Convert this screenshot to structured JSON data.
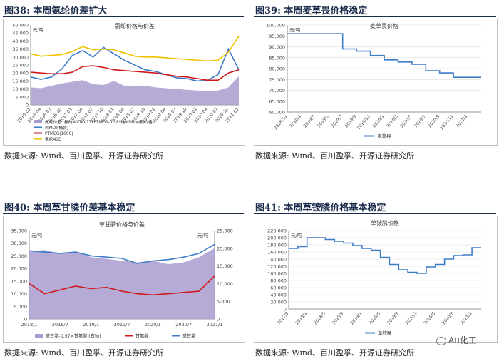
{
  "figures": [
    {
      "title": "图38:  本周氨纶价差扩大",
      "source": "数据来源:  Wind、百川盈孚、开源证券研究所"
    },
    {
      "title": "图39:  本周麦草畏价格稳定",
      "source": "数据来源:  Wind、百川盈孚、开源证券研究所"
    },
    {
      "title": "图40:  本周草甘膦价差基本稳定",
      "source": "数据来源:  Wind、百川盈孚、开源证券研究所"
    },
    {
      "title": "图41:  本周草铵膦价格基本稳定",
      "source": "数据来源:  Wind、百川盈孚、开源证券研究所"
    }
  ],
  "watermark": "Au化工",
  "colors": {
    "navy": "#1b2b4b",
    "purple": "#a99bd0",
    "blue": "#3d7cc9",
    "red": "#d1191c",
    "gold": "#f2c200",
    "grid": "#d9d9d9"
  },
  "chart_data": [
    {
      "type": "area",
      "title": "氨纶价格与价差",
      "ylabel": "元/吨",
      "ylim": [
        0,
        50000
      ],
      "yticks": [
        0,
        5000,
        10000,
        15000,
        20000,
        25000,
        30000,
        35000,
        40000,
        45000,
        50000
      ],
      "ytick_labels": [
        "0",
        "5,000",
        "10,000",
        "15,000",
        "20,000",
        "25,000",
        "30,000",
        "35,000",
        "40,000",
        "45,000",
        "50,000"
      ],
      "x": [
        "2016-01",
        "2016-04",
        "2016-07",
        "2016-10",
        "2017-01",
        "2017-04",
        "2017-07",
        "2017-10",
        "2018-01",
        "2018-04",
        "2018-07",
        "2018-10",
        "2019-01",
        "2019-04",
        "2019-07",
        "2019-10",
        "2020-01",
        "2020-04",
        "2020-07",
        "2020-10",
        "2021-01"
      ],
      "x_tick_labels": [
        "2016-01",
        "2016-04",
        "2016-07",
        "2016-10",
        "2017-01",
        "2017-04",
        "2017-07",
        "2017-10",
        "2018-01",
        "2018-04",
        "2018-07",
        "2018-10",
        "2019-01",
        "2019-04",
        "2019-07",
        "2019-10",
        "2020-01",
        "2020-04",
        "2020-07",
        "2020-10",
        "2021-01"
      ],
      "legend": [
        "氨纶价差: 氨纶40D-0.77*PTMEG-0.18*纯MDI (自勤价格)",
        "纯MDI(桶装)",
        "PTMEG(1000)",
        "氨纶40D"
      ],
      "series": [
        {
          "name": "氨纶价差: 氨纶40D-0.77*PTMEG-0.18*纯MDI (自勤价格)",
          "kind": "area",
          "color": "#a99bd0",
          "values": [
            11000,
            10500,
            12000,
            13500,
            14500,
            15500,
            13000,
            12500,
            15000,
            12000,
            11500,
            12000,
            11000,
            10500,
            10000,
            9500,
            9000,
            8500,
            9000,
            11000,
            18000
          ]
        },
        {
          "name": "纯MDI(桶装)",
          "kind": "line",
          "color": "#3d7cc9",
          "values": [
            17500,
            16000,
            17500,
            22500,
            31000,
            34000,
            30000,
            36000,
            32000,
            28000,
            25000,
            22000,
            21000,
            19000,
            17000,
            16500,
            15000,
            15500,
            19000,
            35000,
            22000
          ]
        },
        {
          "name": "PTMEG(1000)",
          "kind": "line",
          "color": "#d1191c",
          "values": [
            20500,
            20000,
            19500,
            19500,
            20500,
            24000,
            24500,
            23500,
            22000,
            21500,
            21000,
            20500,
            20000,
            19000,
            18000,
            17500,
            16500,
            15500,
            15500,
            20000,
            22000
          ]
        },
        {
          "name": "氨纶40D",
          "kind": "line",
          "color": "#f2c200",
          "values": [
            32000,
            30500,
            31000,
            31500,
            33500,
            36500,
            34500,
            35000,
            34500,
            32500,
            30500,
            30000,
            30000,
            29500,
            29000,
            28500,
            28000,
            27500,
            28000,
            33000,
            43000
          ]
        }
      ]
    },
    {
      "type": "line",
      "title": "麦草畏价格",
      "ylabel": "元/吨",
      "ylim": [
        60000,
        100000
      ],
      "yticks": [
        60000,
        65000,
        70000,
        75000,
        80000,
        85000,
        90000,
        95000,
        100000
      ],
      "ytick_labels": [
        "60,000",
        "65,000",
        "70,000",
        "75,000",
        "80,000",
        "85,000",
        "90,000",
        "95,000",
        "100,000"
      ],
      "x": [
        "2018/11",
        "2019/1",
        "2019/3",
        "2019/5",
        "2019/7",
        "2019/9",
        "2019/11",
        "2020/1",
        "2020/3",
        "2020/5",
        "2020/7",
        "2020/9",
        "2020/11",
        "2021/1",
        "2021/2"
      ],
      "x_tick_labels": [
        "2018/11",
        "2019/1",
        "2019/3",
        "2019/5",
        "2019/7",
        "2019/9",
        "2019/11",
        "2020/1",
        "2020/3",
        "2020/5",
        "2020/7",
        "2020/9",
        "2020/11",
        "2021/1"
      ],
      "legend": [
        "麦草畏"
      ],
      "series": [
        {
          "name": "麦草畏",
          "color": "#3d7cc9",
          "values": [
            96000,
            96000,
            96000,
            96000,
            89000,
            88000,
            86000,
            84000,
            83000,
            82000,
            79000,
            78000,
            76000,
            76000,
            76000
          ]
        }
      ]
    },
    {
      "type": "area",
      "title": "草甘膦价格与价差",
      "ylabel": "元/吨",
      "ylim": [
        0,
        35000
      ],
      "y2lim": [
        0,
        25000
      ],
      "yticks": [
        0,
        5000,
        10000,
        15000,
        20000,
        25000,
        30000,
        35000
      ],
      "ytick_labels": [
        "0",
        "5,000",
        "10,000",
        "15,000",
        "20,000",
        "25,000",
        "30,000",
        "35,000"
      ],
      "y2ticks": [
        0,
        5000,
        10000,
        15000,
        20000,
        25000
      ],
      "y2tick_labels": [
        "0",
        "5,000",
        "10,000",
        "15,000",
        "20,000",
        "25,000"
      ],
      "x": [
        "2018/1",
        "2018/4",
        "2018/7",
        "2018/10",
        "2019/1",
        "2019/4",
        "2019/7",
        "2019/10",
        "2020/1",
        "2020/4",
        "2020/7",
        "2020/10",
        "2021/1"
      ],
      "x_tick_labels": [
        "2018/1",
        "2018/7",
        "2019/1",
        "2019/7",
        "2020/1",
        "2020/7",
        "2021/1"
      ],
      "legend": [
        "草甘膦-0.57×甘氨酸 (右轴)",
        "甘氨酸",
        "草甘膦"
      ],
      "series": [
        {
          "name": "草甘膦-0.57×甘氨酸 (右轴)",
          "kind": "area",
          "axis": "right",
          "color": "#a99bd0",
          "values": [
            19000,
            19500,
            18500,
            19000,
            17500,
            17000,
            16500,
            16000,
            16500,
            15500,
            16000,
            17500,
            20000
          ]
        },
        {
          "name": "甘氨酸",
          "kind": "line",
          "color": "#d1191c",
          "values": [
            14000,
            10000,
            11500,
            13000,
            12000,
            12500,
            11000,
            10000,
            9500,
            10000,
            10500,
            11000,
            17000
          ]
        },
        {
          "name": "草甘膦",
          "kind": "line",
          "color": "#3d7cc9",
          "values": [
            27000,
            26500,
            26000,
            26500,
            25000,
            24500,
            24000,
            22000,
            23000,
            23500,
            24500,
            26000,
            29500
          ]
        }
      ]
    },
    {
      "type": "line",
      "title": "草铵膦价格",
      "ylabel": "元/吨",
      "ylim": [
        0,
        220000
      ],
      "yticks": [
        0,
        20000,
        40000,
        60000,
        80000,
        100000,
        120000,
        140000,
        160000,
        180000,
        200000,
        220000
      ],
      "ytick_labels": [
        "0",
        "20,000",
        "40,000",
        "60,000",
        "80,000",
        "100,000",
        "120,000",
        "140,000",
        "160,000",
        "180,000",
        "200,000",
        "220,000"
      ],
      "x": [
        "2017/9",
        "2017/11",
        "2018/1",
        "2018/3",
        "2018/5",
        "2018/7",
        "2018/9",
        "2018/11",
        "2019/1",
        "2019/3",
        "2019/5",
        "2019/7",
        "2019/9",
        "2019/11",
        "2020/1",
        "2020/3",
        "2020/5",
        "2020/7",
        "2020/9",
        "2020/11",
        "2021/1",
        "2021/2"
      ],
      "x_tick_labels": [
        "2017/9",
        "2018/1",
        "2018/5",
        "2018/9",
        "2019/1",
        "2019/5",
        "2019/9",
        "2020/1",
        "2020/5",
        "2020/9",
        "2021/1"
      ],
      "legend": [
        "草铵膦"
      ],
      "series": [
        {
          "name": "草铵膦",
          "color": "#3d7cc9",
          "values": [
            170000,
            175000,
            200000,
            200000,
            195000,
            190000,
            185000,
            178000,
            170000,
            165000,
            145000,
            125000,
            110000,
            103000,
            100000,
            118000,
            125000,
            140000,
            150000,
            152000,
            172000,
            172000
          ]
        }
      ]
    }
  ]
}
